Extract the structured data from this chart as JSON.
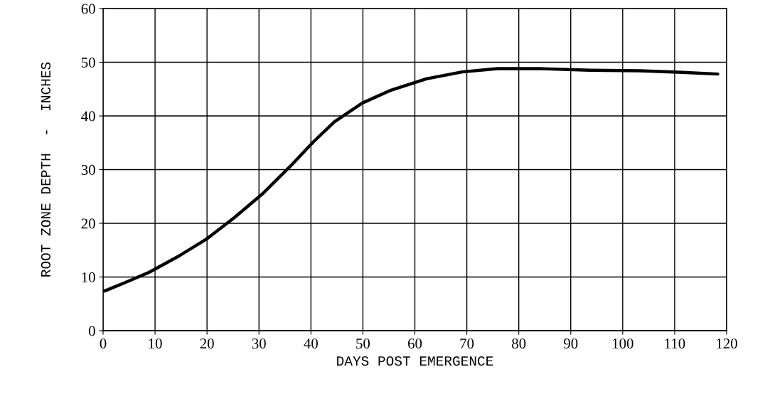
{
  "chart_data": {
    "type": "line",
    "xlabel": "DAYS POST EMERGENCE",
    "ylabel": "ROOT ZONE DEPTH  -  INCHES",
    "x": [
      0.3,
      4.1,
      8.9,
      14.4,
      19.8,
      25.3,
      30.8,
      36.3,
      40.4,
      44.5,
      49.9,
      55.4,
      62.2,
      69.1,
      75.9,
      84.1,
      93.7,
      103.3,
      111.5,
      118.3
    ],
    "series": [
      {
        "color": "#000000",
        "values": [
          7.4,
          8.9,
          10.9,
          13.8,
          17.0,
          21.1,
          25.6,
          30.9,
          35.1,
          38.9,
          42.4,
          44.8,
          46.9,
          48.2,
          48.8,
          48.8,
          48.5,
          48.4,
          48.1,
          47.8
        ]
      }
    ],
    "xlim": [
      0,
      120
    ],
    "xticks": [
      0,
      10,
      20,
      30,
      40,
      50,
      60,
      70,
      80,
      90,
      100,
      110,
      120
    ],
    "ylim": [
      0,
      60
    ],
    "yticks": [
      0,
      10,
      20,
      30,
      40,
      50,
      60
    ],
    "grid": true,
    "line_style": "solid"
  }
}
